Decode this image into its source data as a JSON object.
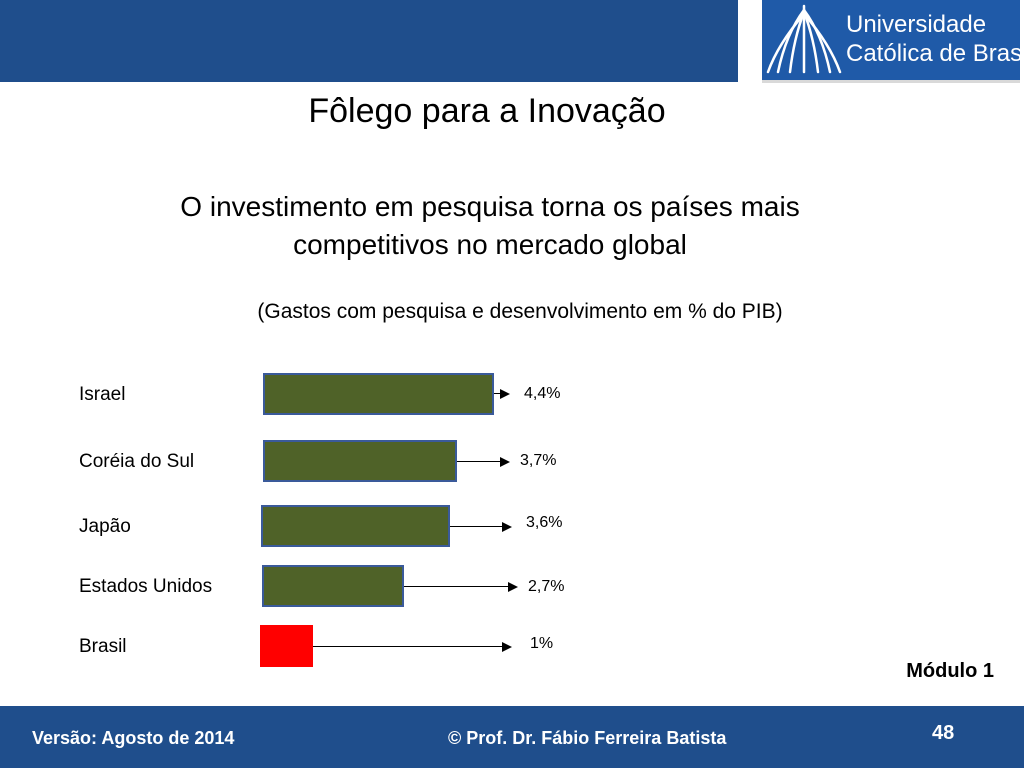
{
  "header": {
    "logo_line1": "Universidade",
    "logo_line2": "Católica de Brasília"
  },
  "slide": {
    "title": "Fôlego para a Inovação",
    "subtitle_line1": "O investimento em pesquisa torna os países mais",
    "subtitle_line2": "competitivos no mercado global",
    "module": "Módulo 1"
  },
  "chart_data": {
    "type": "bar",
    "orientation": "horizontal",
    "title": "(Gastos com pesquisa e desenvolvimento em % do PIB)",
    "categories": [
      "Israel",
      "Coréia do Sul",
      "Japão",
      "Estados Unidos",
      "Brasil"
    ],
    "values": [
      4.4,
      3.7,
      3.6,
      2.7,
      1
    ],
    "value_labels": [
      "4,4%",
      "3,7%",
      "3,6%",
      "2,7%",
      "1%"
    ],
    "colors": [
      "#4f6228",
      "#4f6228",
      "#4f6228",
      "#4f6228",
      "#ff0000"
    ],
    "border_color": "#3a5a9a",
    "legend": "none",
    "grid": false
  },
  "footer": {
    "version": "Versão: Agosto de 2014",
    "author": "© Prof. Dr. Fábio Ferreira Batista",
    "page": "48"
  },
  "colors": {
    "header_band": "#1f4e8c",
    "footer_band": "#1f4e8c",
    "logo_background": "#1f5aa8"
  }
}
